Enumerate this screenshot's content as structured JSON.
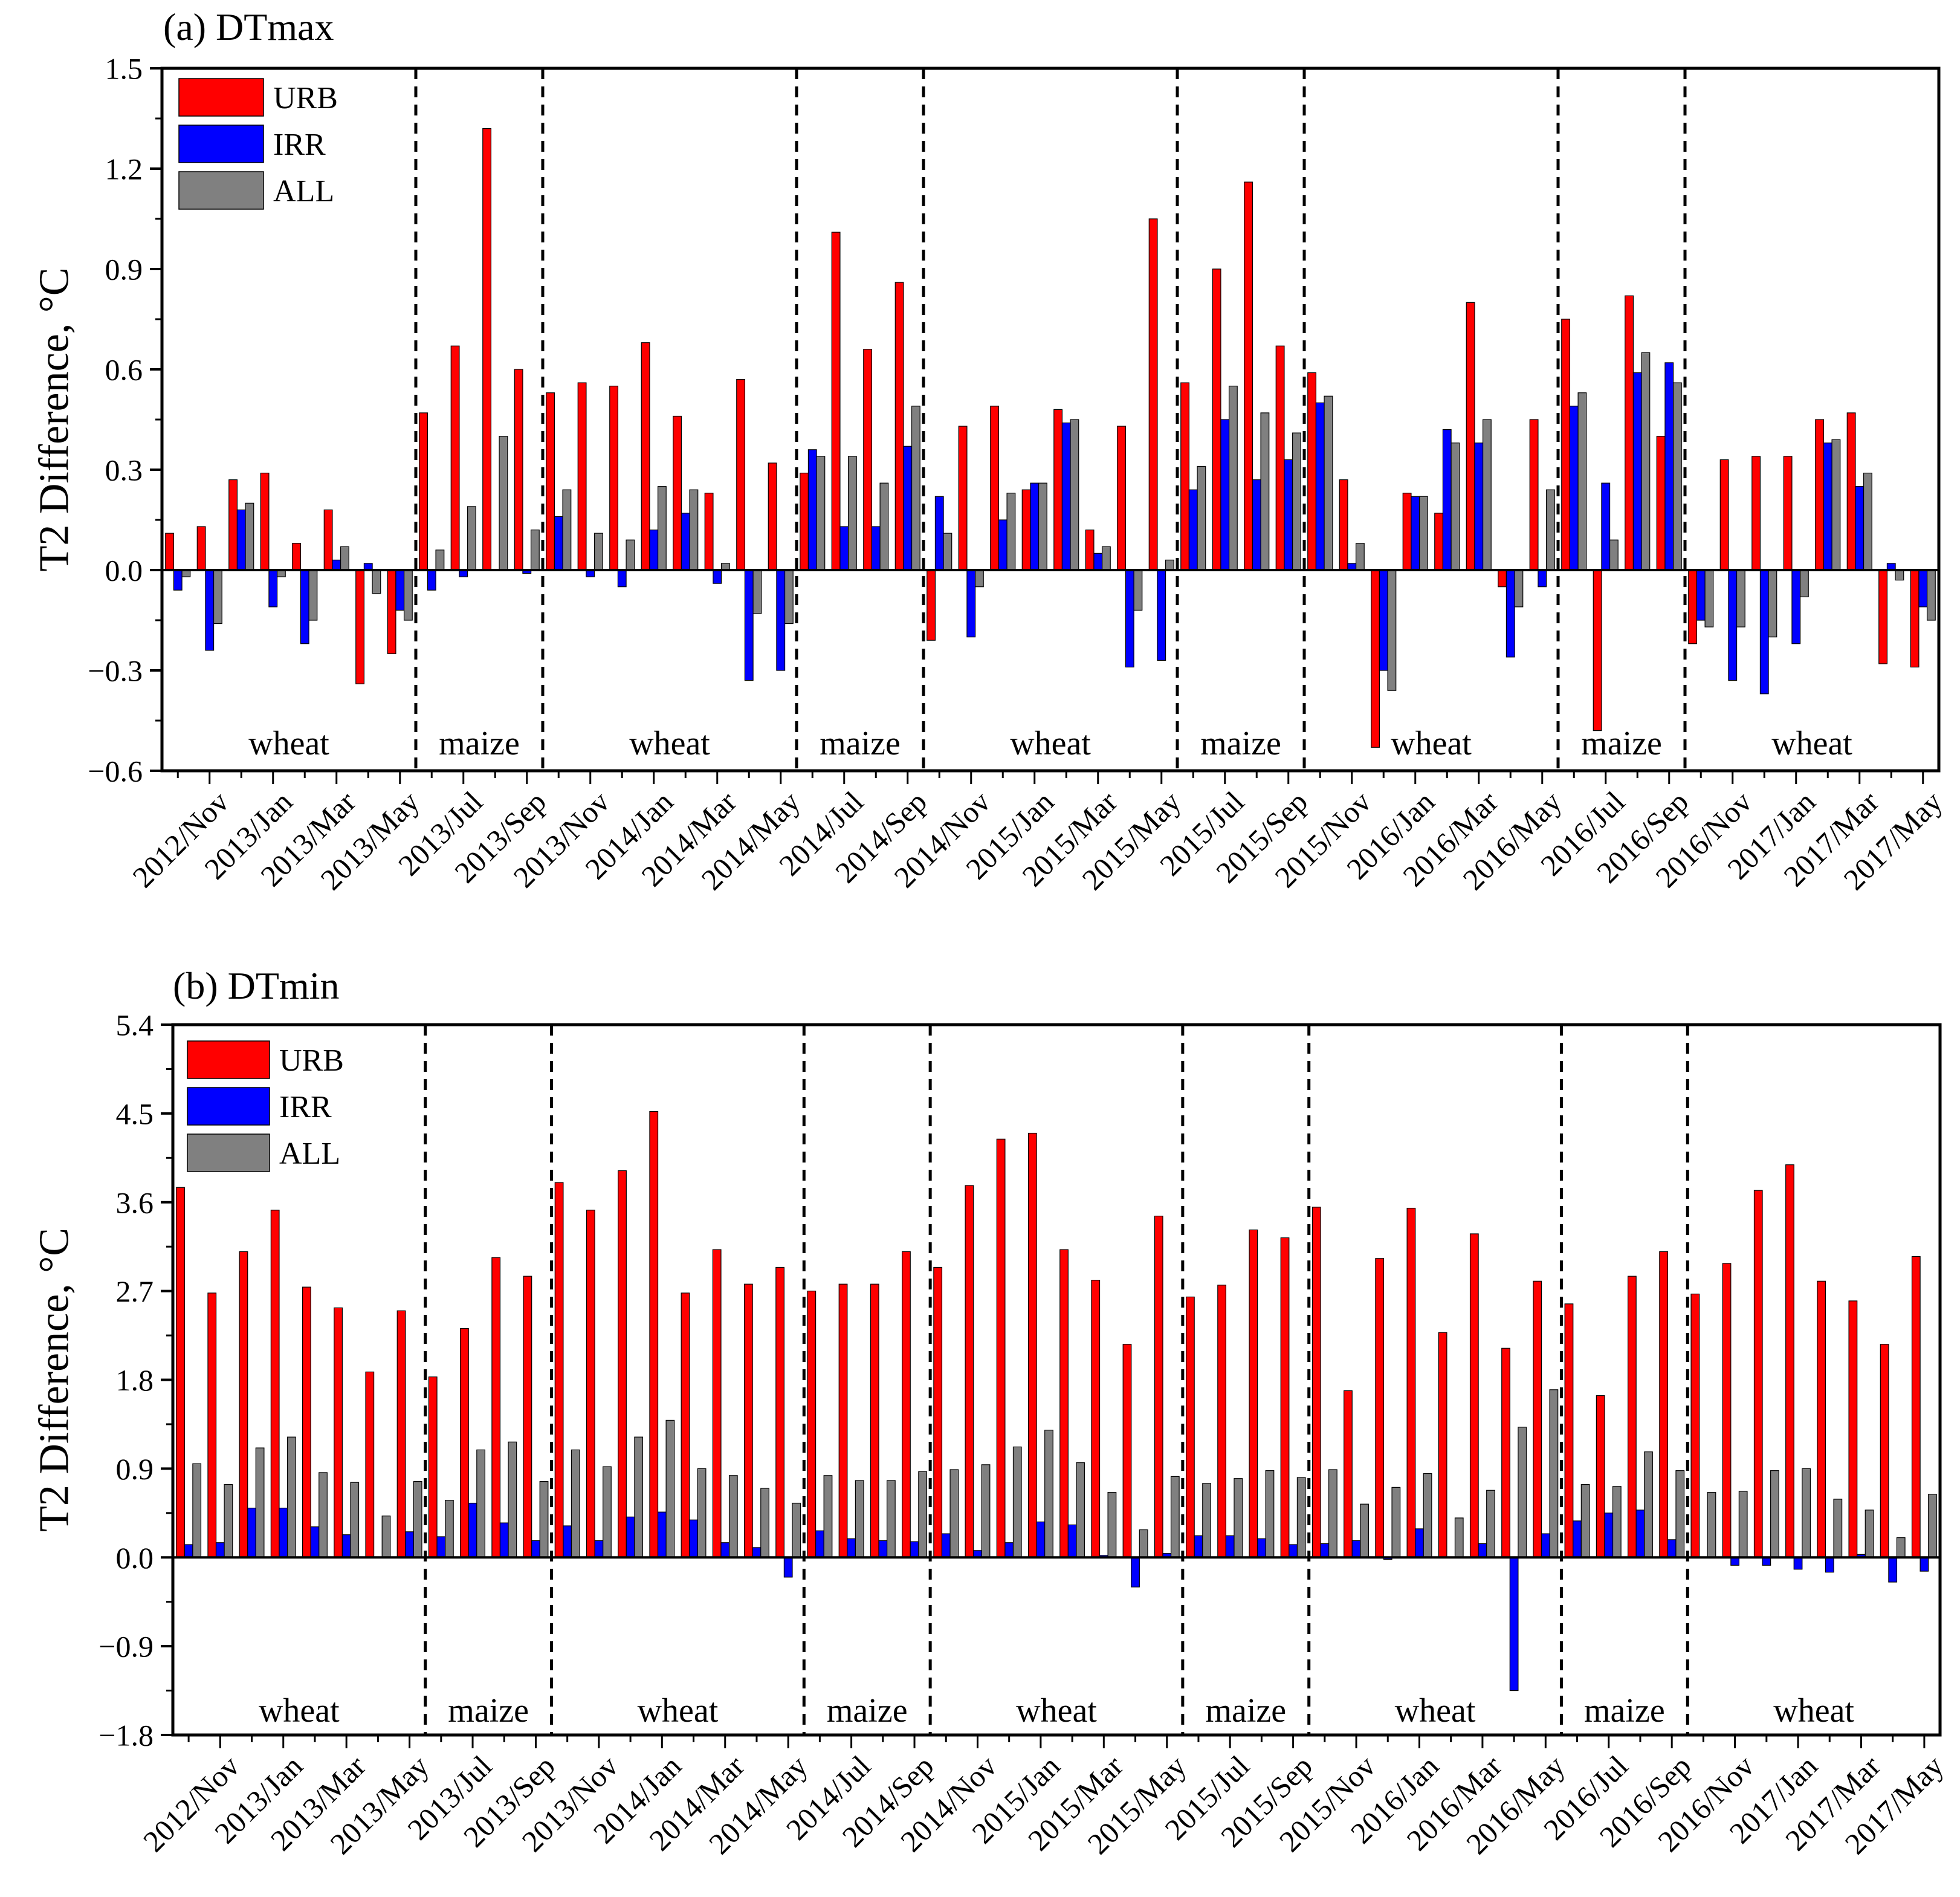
{
  "colors": {
    "URB": "#ff0000",
    "IRR": "#0000ff",
    "ALL": "#808080"
  },
  "x_tick_labels": [
    "2012/Nov",
    "2013/Jan",
    "2013/Mar",
    "2013/May",
    "2013/Jul",
    "2013/Sep",
    "2013/Nov",
    "2014/Jan",
    "2014/Mar",
    "2014/May",
    "2014/Jul",
    "2014/Sep",
    "2014/Nov",
    "2015/Jan",
    "2015/Mar",
    "2015/May",
    "2015/Jul",
    "2015/Sep",
    "2015/Nov",
    "2016/Jan",
    "2016/Mar",
    "2016/May",
    "2016/Jul",
    "2016/Sep",
    "2016/Nov",
    "2017/Jan",
    "2017/Mar",
    "2017/May"
  ],
  "chart_data": [
    {
      "type": "bar",
      "title": "(a) DTmax",
      "ylabel": "T2 Difference, °C",
      "ylim": [
        -0.6,
        1.5
      ],
      "yticks": [
        "1.5",
        "1.2",
        "0.9",
        "0.6",
        "0.3",
        "0.0",
        "−0.3",
        "−0.6"
      ],
      "legend": "top-left",
      "months": [
        "2012/Oct",
        "2012/Nov",
        "2012/Dec",
        "2013/Jan",
        "2013/Feb",
        "2013/Mar",
        "2013/Apr",
        "2013/May",
        "2013/Jun",
        "2013/Jul",
        "2013/Aug",
        "2013/Sep",
        "2013/Oct",
        "2013/Nov",
        "2013/Dec",
        "2014/Jan",
        "2014/Feb",
        "2014/Mar",
        "2014/Apr",
        "2014/May",
        "2014/Jun",
        "2014/Jul",
        "2014/Aug",
        "2014/Sep",
        "2014/Oct",
        "2014/Nov",
        "2014/Dec",
        "2015/Jan",
        "2015/Feb",
        "2015/Mar",
        "2015/Apr",
        "2015/May",
        "2015/Jun",
        "2015/Jul",
        "2015/Aug",
        "2015/Sep",
        "2015/Oct",
        "2015/Nov",
        "2015/Dec",
        "2016/Jan",
        "2016/Feb",
        "2016/Mar",
        "2016/Apr",
        "2016/May",
        "2016/Jun",
        "2016/Jul",
        "2016/Aug",
        "2016/Sep",
        "2016/Oct",
        "2016/Nov",
        "2016/Dec",
        "2017/Jan",
        "2017/Feb",
        "2017/Mar",
        "2017/Apr",
        "2017/May"
      ],
      "series": [
        {
          "name": "URB",
          "values": [
            0.11,
            0.13,
            0.27,
            0.29,
            0.08,
            0.18,
            -0.34,
            -0.25,
            0.47,
            0.67,
            1.32,
            0.6,
            0.53,
            0.56,
            0.55,
            0.68,
            0.46,
            0.23,
            0.57,
            0.32,
            0.29,
            1.01,
            0.66,
            0.86,
            -0.21,
            0.43,
            0.49,
            0.24,
            0.48,
            0.12,
            0.43,
            1.05,
            0.56,
            0.9,
            1.16,
            0.67,
            0.59,
            0.27,
            -0.53,
            0.23,
            0.17,
            0.8,
            -0.05,
            0.45,
            0.75,
            -0.48,
            0.82,
            0.4,
            -0.22,
            0.33,
            0.34,
            0.34,
            0.45,
            0.47,
            -0.28,
            -0.29
          ]
        },
        {
          "name": "IRR",
          "values": [
            -0.06,
            -0.24,
            0.18,
            -0.11,
            -0.22,
            0.03,
            0.02,
            -0.12,
            -0.06,
            -0.02,
            0.0,
            -0.01,
            0.16,
            -0.02,
            -0.05,
            0.12,
            0.17,
            -0.04,
            -0.33,
            -0.3,
            0.36,
            0.13,
            0.13,
            0.37,
            0.22,
            -0.2,
            0.15,
            0.26,
            0.44,
            0.05,
            -0.29,
            -0.27,
            0.24,
            0.45,
            0.27,
            0.33,
            0.5,
            0.02,
            -0.3,
            0.22,
            0.42,
            0.38,
            -0.26,
            -0.05,
            0.49,
            0.26,
            0.59,
            0.62,
            -0.15,
            -0.33,
            -0.37,
            -0.22,
            0.38,
            0.25,
            0.02,
            -0.11
          ]
        },
        {
          "name": "ALL",
          "values": [
            -0.02,
            -0.16,
            0.2,
            -0.02,
            -0.15,
            0.07,
            -0.07,
            -0.15,
            0.06,
            0.19,
            0.4,
            0.12,
            0.24,
            0.11,
            0.09,
            0.25,
            0.24,
            0.02,
            -0.13,
            -0.16,
            0.34,
            0.34,
            0.26,
            0.49,
            0.11,
            -0.05,
            0.23,
            0.26,
            0.45,
            0.07,
            -0.12,
            0.03,
            0.31,
            0.55,
            0.47,
            0.41,
            0.52,
            0.08,
            -0.36,
            0.22,
            0.38,
            0.45,
            -0.11,
            0.24,
            0.53,
            0.09,
            0.65,
            0.56,
            -0.17,
            -0.17,
            -0.2,
            -0.08,
            0.39,
            0.29,
            -0.03,
            -0.15
          ]
        }
      ],
      "season_dividers_after_month_index": [
        7,
        11,
        19,
        23,
        31,
        35,
        43,
        47
      ],
      "seasons": [
        {
          "label": "wheat",
          "from": 0,
          "to": 7
        },
        {
          "label": "maize",
          "from": 8,
          "to": 11
        },
        {
          "label": "wheat",
          "from": 12,
          "to": 19
        },
        {
          "label": "maize",
          "from": 20,
          "to": 23
        },
        {
          "label": "wheat",
          "from": 24,
          "to": 31
        },
        {
          "label": "maize",
          "from": 32,
          "to": 35
        },
        {
          "label": "wheat",
          "from": 36,
          "to": 43
        },
        {
          "label": "maize",
          "from": 44,
          "to": 47
        },
        {
          "label": "wheat",
          "from": 48,
          "to": 55
        }
      ]
    },
    {
      "type": "bar",
      "title": "(b) DTmin",
      "ylabel": "T2 Difference, °C",
      "ylim": [
        -1.8,
        5.4
      ],
      "yticks": [
        "5.4",
        "4.5",
        "3.6",
        "2.7",
        "1.8",
        "0.9",
        "0.0",
        "−0.9",
        "−1.8"
      ],
      "legend": "top-left",
      "months": [
        "2012/Oct",
        "2012/Nov",
        "2012/Dec",
        "2013/Jan",
        "2013/Feb",
        "2013/Mar",
        "2013/Apr",
        "2013/May",
        "2013/Jun",
        "2013/Jul",
        "2013/Aug",
        "2013/Sep",
        "2013/Oct",
        "2013/Nov",
        "2013/Dec",
        "2014/Jan",
        "2014/Feb",
        "2014/Mar",
        "2014/Apr",
        "2014/May",
        "2014/Jun",
        "2014/Jul",
        "2014/Aug",
        "2014/Sep",
        "2014/Oct",
        "2014/Nov",
        "2014/Dec",
        "2015/Jan",
        "2015/Feb",
        "2015/Mar",
        "2015/Apr",
        "2015/May",
        "2015/Jun",
        "2015/Jul",
        "2015/Aug",
        "2015/Sep",
        "2015/Oct",
        "2015/Nov",
        "2015/Dec",
        "2016/Jan",
        "2016/Feb",
        "2016/Mar",
        "2016/Apr",
        "2016/May",
        "2016/Jun",
        "2016/Jul",
        "2016/Aug",
        "2016/Sep",
        "2016/Oct",
        "2016/Nov",
        "2016/Dec",
        "2017/Jan",
        "2017/Feb",
        "2017/Mar",
        "2017/Apr",
        "2017/May"
      ],
      "series": [
        {
          "name": "URB",
          "values": [
            3.75,
            2.68,
            3.1,
            3.52,
            2.74,
            2.53,
            1.88,
            2.5,
            1.83,
            2.32,
            3.04,
            2.85,
            3.8,
            3.52,
            3.92,
            4.52,
            2.68,
            3.12,
            2.77,
            2.94,
            2.7,
            2.77,
            2.77,
            3.1,
            2.94,
            3.77,
            4.24,
            4.3,
            3.12,
            2.81,
            2.16,
            3.46,
            2.64,
            2.76,
            3.32,
            3.24,
            3.55,
            1.69,
            3.03,
            3.54,
            2.28,
            3.28,
            2.12,
            2.8,
            2.57,
            1.64,
            2.85,
            3.1,
            2.67,
            2.98,
            3.72,
            3.98,
            2.8,
            2.6,
            2.16,
            3.05
          ]
        },
        {
          "name": "IRR",
          "values": [
            0.13,
            0.15,
            0.5,
            0.5,
            0.31,
            0.23,
            0.0,
            0.26,
            0.21,
            0.55,
            0.35,
            0.17,
            0.32,
            0.17,
            0.41,
            0.46,
            0.38,
            0.15,
            0.1,
            -0.2,
            0.27,
            0.19,
            0.17,
            0.16,
            0.24,
            0.07,
            0.15,
            0.36,
            0.33,
            0.02,
            -0.3,
            0.04,
            0.22,
            0.22,
            0.19,
            0.13,
            0.14,
            0.17,
            -0.02,
            0.29,
            0.0,
            0.14,
            -1.35,
            0.24,
            0.37,
            0.45,
            0.48,
            0.18,
            0.0,
            -0.08,
            -0.08,
            -0.12,
            -0.15,
            0.03,
            -0.25,
            -0.14
          ]
        },
        {
          "name": "ALL",
          "values": [
            0.95,
            0.74,
            1.11,
            1.22,
            0.86,
            0.76,
            0.42,
            0.77,
            0.58,
            1.09,
            1.17,
            0.77,
            1.09,
            0.92,
            1.22,
            1.39,
            0.9,
            0.83,
            0.7,
            0.55,
            0.83,
            0.78,
            0.78,
            0.87,
            0.89,
            0.94,
            1.12,
            1.29,
            0.96,
            0.66,
            0.28,
            0.82,
            0.75,
            0.8,
            0.88,
            0.81,
            0.89,
            0.54,
            0.71,
            0.85,
            0.4,
            0.68,
            1.32,
            1.7,
            0.74,
            0.72,
            1.07,
            0.88,
            0.66,
            0.67,
            0.88,
            0.9,
            0.59,
            0.48,
            0.2,
            0.64
          ]
        }
      ],
      "season_dividers_after_month_index": [
        7,
        11,
        19,
        23,
        31,
        35,
        43,
        47
      ],
      "seasons": [
        {
          "label": "wheat",
          "from": 0,
          "to": 7
        },
        {
          "label": "maize",
          "from": 8,
          "to": 11
        },
        {
          "label": "wheat",
          "from": 12,
          "to": 19
        },
        {
          "label": "maize",
          "from": 20,
          "to": 23
        },
        {
          "label": "wheat",
          "from": 24,
          "to": 31
        },
        {
          "label": "maize",
          "from": 32,
          "to": 35
        },
        {
          "label": "wheat",
          "from": 36,
          "to": 43
        },
        {
          "label": "maize",
          "from": 44,
          "to": 47
        },
        {
          "label": "wheat",
          "from": 48,
          "to": 55
        }
      ]
    }
  ]
}
